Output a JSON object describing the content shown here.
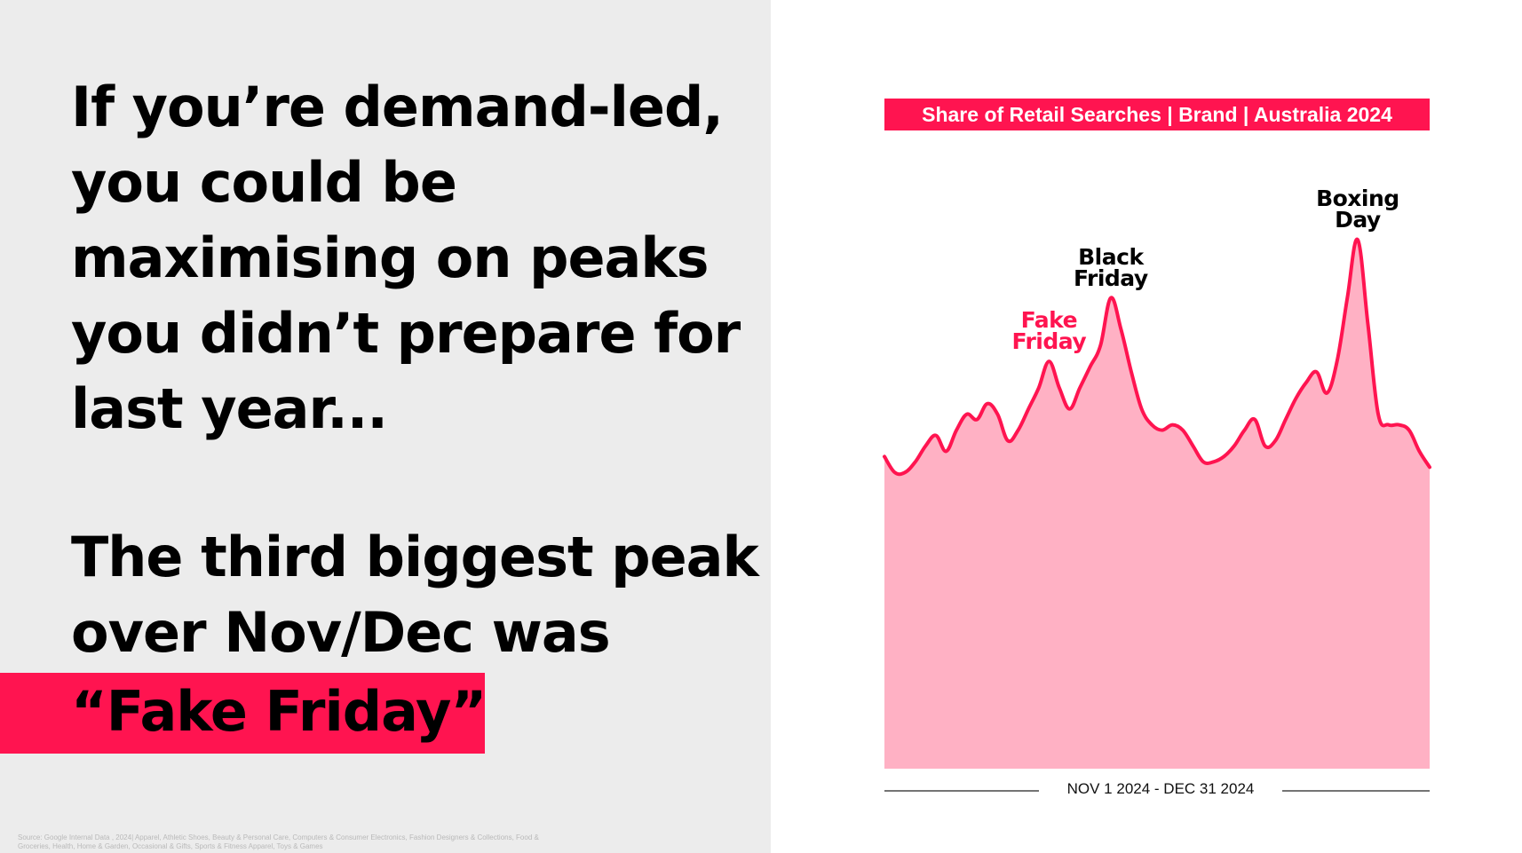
{
  "headline": {
    "lines": [
      "If you’re demand-led,",
      "you could be",
      "maximising on peaks",
      "you didn’t prepare for",
      "last year..."
    ]
  },
  "subhead": {
    "lines": [
      "The third biggest peak",
      "over Nov/Dec was"
    ],
    "highlight": "“Fake Friday”"
  },
  "source_note": "Source: Google Internal Data , 2024| Apparel, Athletic Shoes, Beauty & Personal Care, Computers & Consumer Electronics, Fashion Designers & Collections, Food & Groceries, Health, Home & Garden, Occasional & Gifts, Sports & Fitness Apparel, Toys & Games",
  "colors": {
    "accent": "#ff1450",
    "area_fill": "#ffb1c4",
    "line": "#ff1450",
    "left_background": "#ececec",
    "axis_line": "#222222"
  },
  "chart_data": {
    "type": "area",
    "title": "Share of Retail Searches | Brand | Australia 2024",
    "xlabel": "NOV 1 2024 - DEC 31 2024",
    "ylabel": "",
    "x_range": [
      "2024-11-01",
      "2024-12-31"
    ],
    "y_note": "relative index, no printed y-axis",
    "ylim": [
      0,
      100
    ],
    "series": [
      {
        "values": [
          59,
          56,
          56,
          58,
          61,
          63,
          60,
          64,
          67,
          66,
          69,
          67,
          62,
          64,
          68,
          72,
          77,
          72,
          68,
          72,
          76,
          80,
          89,
          83,
          75,
          68,
          65,
          64,
          65,
          64,
          61,
          58,
          58,
          59,
          61,
          64,
          66,
          61,
          62,
          66,
          70,
          73,
          75,
          71,
          77,
          89,
          100,
          84,
          67,
          65,
          65,
          64,
          60,
          57
        ]
      }
    ],
    "annotations": [
      {
        "text_lines": [
          "Fake",
          "Friday"
        ],
        "color": "#ff1450",
        "index": 16
      },
      {
        "text_lines": [
          "Black",
          "Friday"
        ],
        "color": "#000000",
        "index": 22
      },
      {
        "text_lines": [
          "Boxing",
          "Day"
        ],
        "color": "#000000",
        "index": 46
      }
    ]
  }
}
